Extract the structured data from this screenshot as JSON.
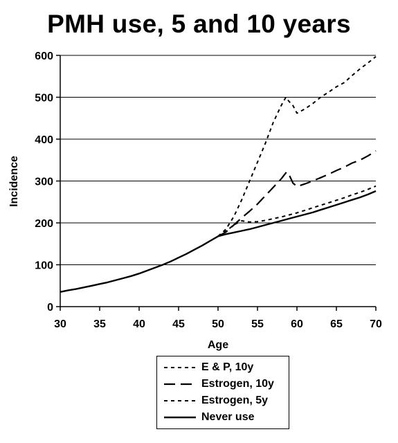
{
  "chart_data": {
    "type": "line",
    "title": "PMH use, 5 and 10 years",
    "xlabel": "Age",
    "ylabel": "Incidence",
    "xlim": [
      30,
      70
    ],
    "ylim": [
      0,
      600
    ],
    "x_ticks": [
      "30",
      "35",
      "40",
      "45",
      "50",
      "55",
      "60",
      "65",
      "70"
    ],
    "y_ticks": [
      "0",
      "100",
      "200",
      "300",
      "400",
      "500",
      "600"
    ],
    "grid": "horizontal",
    "legend_position": "bottom",
    "series": [
      {
        "name": "E & P, 10y",
        "style": "short-dash",
        "x": [
          50,
          51,
          52,
          53,
          54,
          55,
          56,
          57,
          58,
          58.6,
          59,
          59.5,
          60,
          61,
          62,
          63,
          64,
          65,
          66,
          67,
          68,
          69,
          70
        ],
        "y": [
          168,
          185,
          215,
          255,
          300,
          345,
          390,
          440,
          480,
          500,
          490,
          480,
          462,
          472,
          485,
          500,
          512,
          525,
          535,
          552,
          568,
          582,
          597
        ]
      },
      {
        "name": "Estrogen, 10y",
        "style": "long-dash",
        "x": [
          50,
          51,
          52,
          53,
          54,
          55,
          56,
          57,
          58,
          58.7,
          59,
          59.5,
          60,
          61,
          62,
          63,
          64,
          65,
          66,
          67,
          68,
          69,
          70
        ],
        "y": [
          168,
          178,
          195,
          212,
          228,
          245,
          265,
          285,
          305,
          322,
          315,
          295,
          287,
          293,
          300,
          308,
          316,
          325,
          333,
          343,
          350,
          360,
          372
        ]
      },
      {
        "name": "Estrogen, 5y",
        "style": "short-dash",
        "x": [
          50,
          51,
          52,
          53,
          54,
          55,
          56,
          57,
          58,
          59,
          60,
          61,
          62,
          63,
          64,
          65,
          66,
          67,
          68,
          69,
          70
        ],
        "y": [
          168,
          180,
          195,
          205,
          202,
          203,
          206,
          210,
          214,
          219,
          224,
          230,
          236,
          242,
          248,
          254,
          260,
          267,
          273,
          280,
          288
        ]
      },
      {
        "name": "Never use",
        "style": "solid",
        "x": [
          30,
          31,
          32,
          33,
          34,
          35,
          36,
          37,
          38,
          39,
          40,
          41,
          42,
          43,
          44,
          45,
          46,
          47,
          48,
          49,
          50,
          51,
          52,
          53,
          54,
          55,
          56,
          57,
          58,
          59,
          60,
          61,
          62,
          63,
          64,
          65,
          66,
          67,
          68,
          69,
          70
        ],
        "y": [
          35,
          39,
          42,
          46,
          50,
          54,
          58,
          63,
          68,
          73,
          79,
          86,
          93,
          100,
          108,
          117,
          126,
          136,
          146,
          157,
          168,
          173,
          177,
          181,
          185,
          190,
          195,
          200,
          205,
          210,
          215,
          220,
          225,
          231,
          237,
          243,
          249,
          255,
          261,
          268,
          276
        ]
      }
    ]
  },
  "legend": {
    "items": [
      {
        "label": "E & P, 10y",
        "style": "short-dash"
      },
      {
        "label": "Estrogen, 10y",
        "style": "long-dash"
      },
      {
        "label": "Estrogen, 5y",
        "style": "short-dash"
      },
      {
        "label": "Never use",
        "style": "solid"
      }
    ]
  }
}
